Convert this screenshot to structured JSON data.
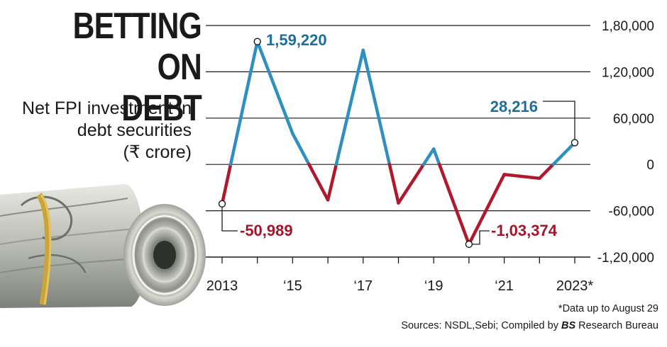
{
  "header": {
    "title_line1": "BETTING ON",
    "title_line2": "DEBT",
    "subtitle_line1": "Net FPI investment in",
    "subtitle_line2": "debt securities",
    "subtitle_line3": "(₹ crore)"
  },
  "footer": {
    "footnote": "*Data up to August 29",
    "sources_prefix": "Sources: NSDL,Sebi; Compiled by ",
    "sources_bs": "BS",
    "sources_suffix": " Research Bureau"
  },
  "illustration": {
    "name": "rolled-currency-notes"
  },
  "chart_data": {
    "type": "line",
    "title": "",
    "xlabel": "",
    "ylabel": "",
    "x": [
      2013,
      2014,
      2015,
      2016,
      2017,
      2018,
      2019,
      2020,
      2021,
      2022,
      2023
    ],
    "values": [
      -50989,
      159220,
      40000,
      -46000,
      148000,
      -50000,
      20000,
      -103374,
      -13000,
      -18000,
      28216
    ],
    "ylim": [
      -120000,
      180000
    ],
    "yticks": [
      180000,
      120000,
      60000,
      0,
      -60000,
      -120000
    ],
    "ytick_labels": [
      "1,80,000",
      "1,20,000",
      "60,000",
      "0",
      "-60,000",
      "-1,20,000"
    ],
    "xtick_positions": [
      2013,
      2015,
      2017,
      2019,
      2021,
      2023
    ],
    "xtick_labels": [
      "2013",
      "‘15",
      "‘17",
      "‘19",
      "‘21",
      "2023*"
    ],
    "positive_color": "#2f8fc0",
    "negative_color": "#b0182b",
    "grid": true,
    "annotations": [
      {
        "x": 2014,
        "y": 159220,
        "label": "1,59,220",
        "color": "#1d6f99"
      },
      {
        "x": 2013,
        "y": -50989,
        "label": "-50,989",
        "color": "#a3162a"
      },
      {
        "x": 2020,
        "y": -103374,
        "label": "-1,03,374",
        "color": "#a3162a"
      },
      {
        "x": 2023,
        "y": 28216,
        "label": "28,216",
        "color": "#1d6f99"
      }
    ]
  }
}
